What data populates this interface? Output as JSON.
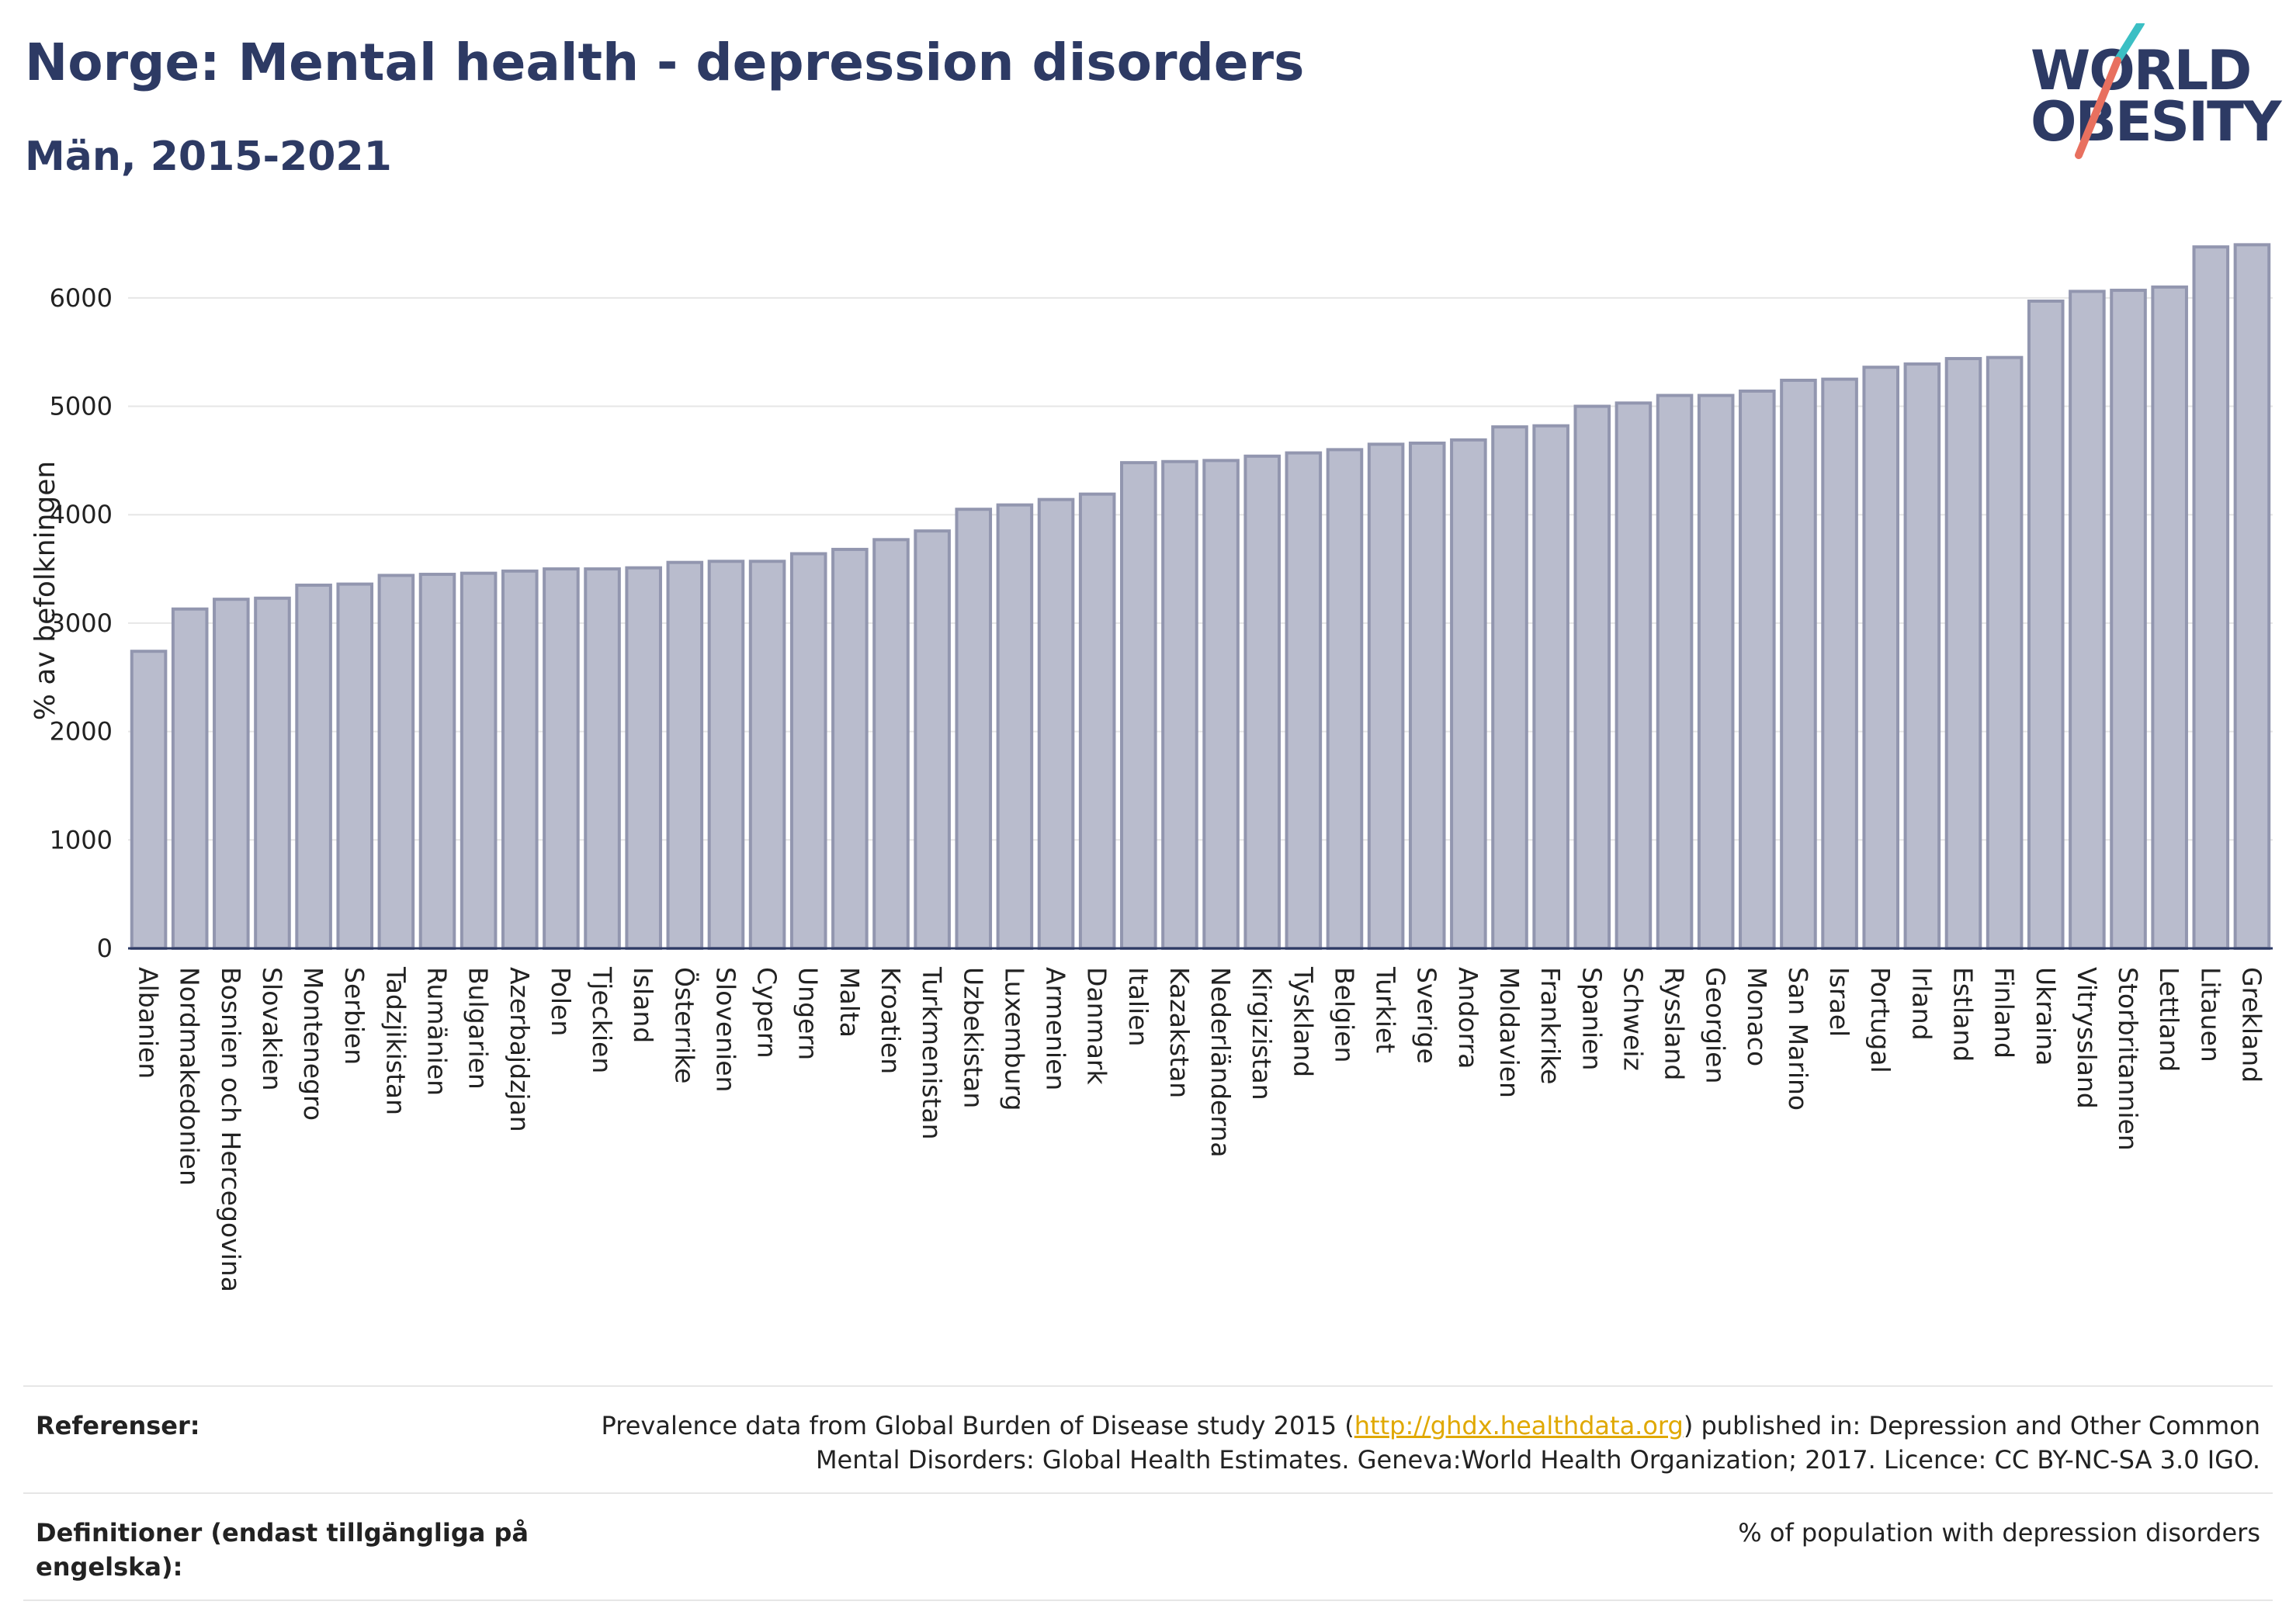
{
  "header": {
    "title": "Norge: Mental health - depression disorders",
    "subtitle": "Män, 2015-2021"
  },
  "logo": {
    "line1": "WORLD",
    "line2": "OBESITY",
    "accent_teal": "#3bbfc4",
    "accent_coral": "#e8705f"
  },
  "colors": {
    "bar_fill": "#b9bccd",
    "bar_stroke": "#9296af",
    "title": "#2d3a64",
    "grid": "#e6e6e6"
  },
  "chart_data": {
    "type": "bar",
    "title": "",
    "xlabel": "",
    "ylabel": "% av befolkningen",
    "ylim": [
      0,
      6600
    ],
    "yticks": [
      0,
      1000,
      2000,
      3000,
      4000,
      5000,
      6000
    ],
    "grid": true,
    "categories": [
      "Albanien",
      "Nordmakedonien",
      "Bosnien och Hercegovina",
      "Slovakien",
      "Montenegro",
      "Serbien",
      "Tadzjikistan",
      "Rumänien",
      "Bulgarien",
      "Azerbajdzjan",
      "Polen",
      "Tjeckien",
      "Island",
      "Österrike",
      "Slovenien",
      "Cypern",
      "Ungern",
      "Malta",
      "Kroatien",
      "Turkmenistan",
      "Uzbekistan",
      "Luxemburg",
      "Armenien",
      "Danmark",
      "Italien",
      "Kazakstan",
      "Nederländerna",
      "Kirgizistan",
      "Tyskland",
      "Belgien",
      "Turkiet",
      "Sverige",
      "Andorra",
      "Moldavien",
      "Frankrike",
      "Spanien",
      "Schweiz",
      "Ryssland",
      "Georgien",
      "Monaco",
      "San Marino",
      "Israel",
      "Portugal",
      "Irland",
      "Estland",
      "Finland",
      "Ukraina",
      "Vitryssland",
      "Storbritannien",
      "Lettland",
      "Litauen",
      "Grekland"
    ],
    "values": [
      2740,
      3130,
      3220,
      3230,
      3350,
      3360,
      3440,
      3450,
      3460,
      3480,
      3500,
      3500,
      3510,
      3560,
      3570,
      3570,
      3640,
      3680,
      3770,
      3850,
      4050,
      4090,
      4140,
      4190,
      4480,
      4490,
      4500,
      4540,
      4570,
      4600,
      4650,
      4660,
      4690,
      4810,
      4820,
      5000,
      5030,
      5100,
      5100,
      5140,
      5240,
      5250,
      5360,
      5390,
      5440,
      5450,
      5970,
      6060,
      6070,
      6100,
      6470,
      6490
    ]
  },
  "footer": {
    "references_label": "Referenser:",
    "references_text_before": "Prevalence data from Global Burden of Disease study 2015 (",
    "references_link": "http://ghdx.healthdata.org",
    "references_text_after": ") published in: Depression and Other Common",
    "references_text_line2": "Mental Disorders: Global Health Estimates. Geneva:World Health Organization; 2017. Licence: CC BY-NC-SA 3.0 IGO.",
    "definitions_label": "Definitioner (endast tillgängliga på engelska):",
    "definitions_text": "% of population with depression disorders"
  }
}
